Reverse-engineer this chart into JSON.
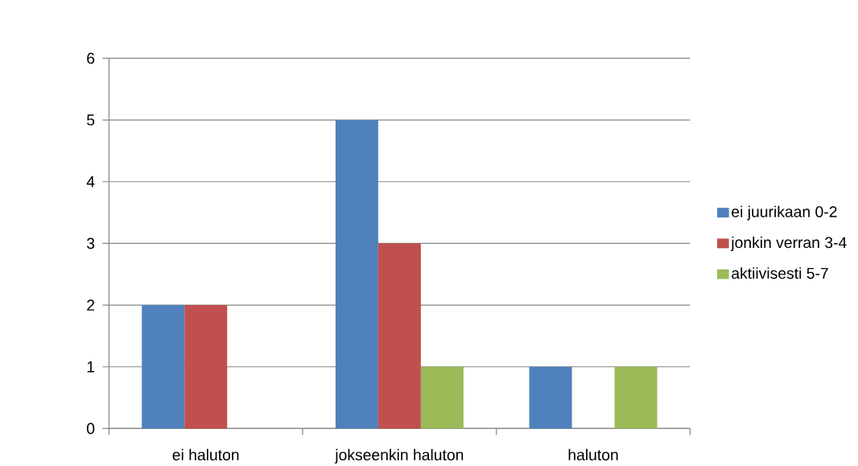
{
  "chart_data": {
    "type": "bar",
    "categories": [
      "ei haluton",
      "jokseenkin haluton",
      "haluton"
    ],
    "series": [
      {
        "name": "ei juurikaan 0-2",
        "color": "#4f81bd",
        "values": [
          2,
          5,
          1
        ]
      },
      {
        "name": "jonkin verran 3-4",
        "color": "#c0504d",
        "values": [
          2,
          3,
          0
        ]
      },
      {
        "name": "aktiivisesti 5-7",
        "color": "#9bbb59",
        "values": [
          0,
          1,
          1
        ]
      }
    ],
    "ylim": [
      0,
      6
    ],
    "yticks": [
      0,
      1,
      2,
      3,
      4,
      5,
      6
    ],
    "grid": "y",
    "legend": "right"
  }
}
